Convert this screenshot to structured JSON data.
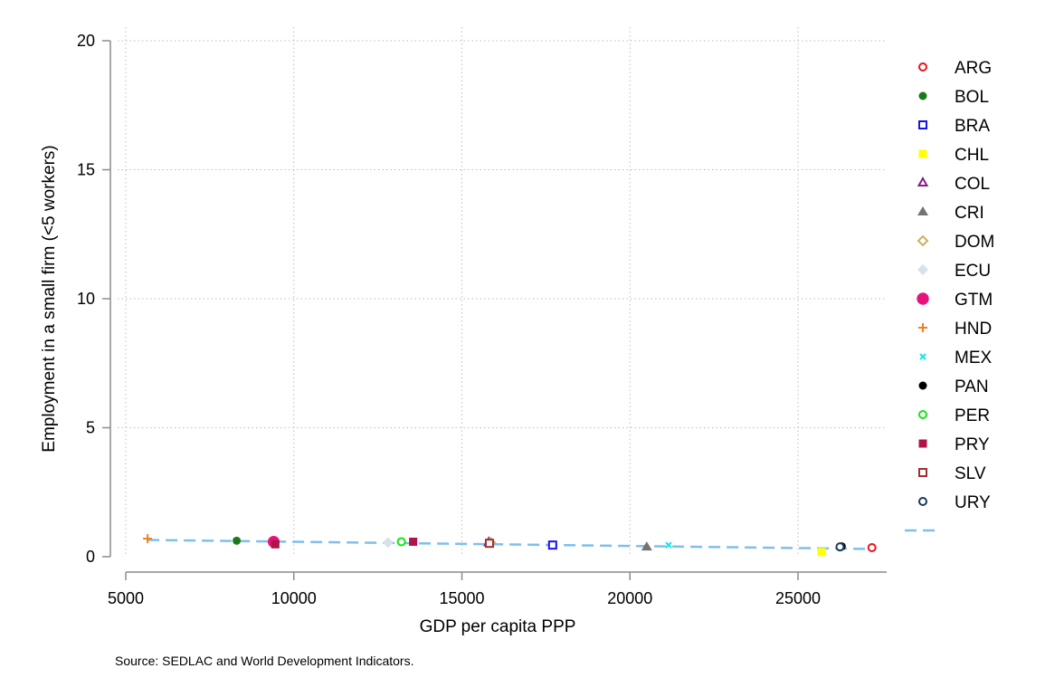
{
  "chart_data": {
    "type": "scatter",
    "xlabel": "GDP per capita PPP",
    "ylabel": "Employment in a small firm (<5 workers)",
    "source_note": "Source: SEDLAC and World Development Indicators.",
    "xlim": [
      5000,
      27500
    ],
    "ylim": [
      0,
      20
    ],
    "xticks": [
      5000,
      10000,
      15000,
      20000,
      25000
    ],
    "yticks": [
      0,
      5,
      10,
      15,
      20
    ],
    "grid": "dotted",
    "legend_position": "right",
    "series": [
      {
        "name": "ARG",
        "marker": "circle-hollow",
        "color": "#e8141e",
        "points": [
          [
            27200,
            0.35
          ]
        ]
      },
      {
        "name": "BOL",
        "marker": "circle-filled",
        "color": "#1a7a1a",
        "points": [
          [
            8300,
            0.62
          ]
        ]
      },
      {
        "name": "BRA",
        "marker": "square-hollow",
        "color": "#1414e6",
        "points": [
          [
            17700,
            0.45
          ]
        ]
      },
      {
        "name": "CHL",
        "marker": "square-filled",
        "color": "#ffff00",
        "points": [
          [
            25700,
            0.18
          ]
        ]
      },
      {
        "name": "COL",
        "marker": "triangle-hollow",
        "color": "#8a1a8a",
        "points": [
          [
            15800,
            0.55
          ]
        ]
      },
      {
        "name": "CRI",
        "marker": "triangle-filled",
        "color": "#737373",
        "points": [
          [
            20500,
            0.38
          ]
        ]
      },
      {
        "name": "DOM",
        "marker": "diamond-hollow",
        "color": "#c9b060",
        "points": [
          [
            15850,
            0.55
          ]
        ]
      },
      {
        "name": "ECU",
        "marker": "diamond-filled",
        "color": "#d6e2ea",
        "points": [
          [
            12800,
            0.55
          ]
        ]
      },
      {
        "name": "GTM",
        "marker": "circle-large",
        "color": "#e6147a",
        "points": [
          [
            9400,
            0.58
          ]
        ]
      },
      {
        "name": "HND",
        "marker": "plus",
        "color": "#f08020",
        "points": [
          [
            5650,
            0.7
          ]
        ]
      },
      {
        "name": "MEX",
        "marker": "x",
        "color": "#14e6e6",
        "points": [
          [
            21150,
            0.45
          ]
        ]
      },
      {
        "name": "PAN",
        "marker": "circle-filled",
        "color": "#000000",
        "points": [
          [
            26300,
            0.4
          ]
        ]
      },
      {
        "name": "PER",
        "marker": "circle-hollow",
        "color": "#14e614",
        "points": [
          [
            13200,
            0.58
          ]
        ]
      },
      {
        "name": "PRY",
        "marker": "square-filled",
        "color": "#b01448",
        "points": [
          [
            13550,
            0.58
          ],
          [
            9450,
            0.48
          ]
        ]
      },
      {
        "name": "SLV",
        "marker": "square-hollow",
        "color": "#a03030",
        "points": [
          [
            15820,
            0.52
          ]
        ]
      },
      {
        "name": "URY",
        "marker": "circle-hollow",
        "color": "#1a3a5a",
        "points": [
          [
            26250,
            0.38
          ]
        ]
      }
    ],
    "fit_line": {
      "color": "#7fbfea",
      "style": "dashed",
      "points": [
        [
          5650,
          0.65
        ],
        [
          27200,
          0.3
        ]
      ]
    }
  }
}
